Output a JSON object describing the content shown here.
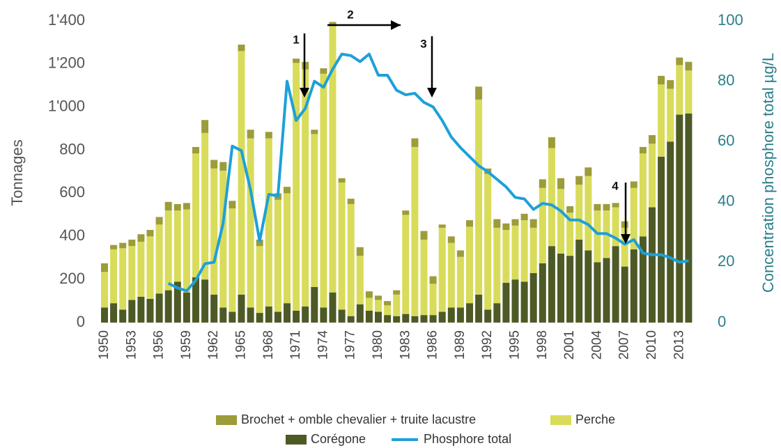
{
  "chart_data": {
    "type": "bar",
    "ylabel": "Tonnages",
    "y2label": "Concentration phosphore total µg/L",
    "categories": [
      "1950",
      null,
      null,
      "1953",
      null,
      null,
      "1956",
      null,
      null,
      "1959",
      null,
      null,
      "1962",
      null,
      null,
      "1965",
      null,
      null,
      "1968",
      null,
      null,
      "1971",
      null,
      null,
      "1974",
      null,
      null,
      "1977",
      null,
      null,
      "1980",
      null,
      null,
      "1983",
      null,
      null,
      "1986",
      null,
      null,
      "1989",
      null,
      null,
      "1992",
      null,
      null,
      "1995",
      null,
      null,
      "1998",
      null,
      null,
      "2001",
      null,
      null,
      "2004",
      null,
      null,
      "2007",
      null,
      null,
      "2010",
      null,
      null,
      "2013",
      null
    ],
    "series": [
      {
        "name": "Corégone",
        "color": "#4d5a26",
        "values": [
          70,
          90,
          60,
          105,
          120,
          110,
          135,
          150,
          190,
          140,
          210,
          200,
          130,
          70,
          50,
          130,
          70,
          45,
          75,
          50,
          90,
          55,
          75,
          165,
          70,
          140,
          60,
          30,
          85,
          55,
          50,
          35,
          30,
          40,
          30,
          35,
          35,
          50,
          70,
          70,
          90,
          130,
          60,
          90,
          185,
          200,
          190,
          230,
          275,
          355,
          320,
          310,
          385,
          335,
          280,
          300,
          355,
          260,
          340,
          400,
          535,
          770,
          840,
          965,
          970
        ]
      },
      {
        "name": "Perche",
        "color": "#d8dc5a",
        "values": [
          165,
          250,
          285,
          250,
          255,
          290,
          320,
          370,
          330,
          385,
          575,
          680,
          585,
          635,
          480,
          1130,
          785,
          310,
          780,
          520,
          510,
          1150,
          1100,
          710,
          1085,
          1235,
          590,
          520,
          225,
          60,
          55,
          45,
          100,
          460,
          785,
          350,
          145,
          390,
          300,
          235,
          355,
          905,
          630,
          350,
          245,
          250,
          285,
          210,
          350,
          455,
          300,
          200,
          255,
          345,
          240,
          220,
          180,
          180,
          285,
          385,
          295,
          335,
          245,
          230,
          200
        ]
      },
      {
        "name": "Brochet + omble chevalier + truite lacustre",
        "color": "#9c9c3a",
        "values": [
          40,
          20,
          25,
          30,
          35,
          30,
          35,
          40,
          30,
          30,
          30,
          60,
          40,
          40,
          35,
          30,
          40,
          30,
          30,
          30,
          30,
          20,
          35,
          20,
          25,
          20,
          20,
          25,
          40,
          30,
          20,
          20,
          20,
          20,
          40,
          40,
          35,
          15,
          30,
          30,
          30,
          60,
          25,
          40,
          30,
          30,
          30,
          40,
          40,
          50,
          50,
          30,
          40,
          40,
          30,
          30,
          20,
          30,
          30,
          30,
          40,
          40,
          40,
          35,
          40
        ]
      },
      {
        "name": "Phosphore total",
        "color": "#1ea0d8",
        "axis": "y2",
        "values": [
          null,
          null,
          null,
          null,
          null,
          null,
          null,
          13,
          11.5,
          10.5,
          14,
          19.5,
          20,
          33,
          58.5,
          57,
          44,
          27,
          42.5,
          42,
          80,
          67,
          71,
          80,
          78,
          84,
          89,
          88.5,
          86.5,
          89,
          82,
          82,
          77,
          75.5,
          76,
          73,
          71.5,
          67,
          61.5,
          58,
          55,
          52,
          50,
          47.5,
          45,
          41.5,
          41,
          37.5,
          39.5,
          39,
          37,
          34,
          34,
          32.5,
          29.5,
          29.5,
          28,
          26,
          27.5,
          23,
          22.5,
          22.5,
          21.5,
          20,
          20.5
        ]
      }
    ],
    "ylim": [
      0,
      1400
    ],
    "yticks": [
      0,
      200,
      400,
      600,
      800,
      {
        "value": 1000,
        "label": "1'000"
      },
      {
        "value": 1200,
        "label": "1'200"
      },
      {
        "value": 1400,
        "label": "1'400"
      }
    ],
    "y2lim": [
      0,
      100
    ],
    "y2ticks": [
      0,
      20,
      40,
      60,
      80,
      100
    ],
    "annotations": [
      "1",
      "2",
      "3",
      "4"
    ]
  }
}
